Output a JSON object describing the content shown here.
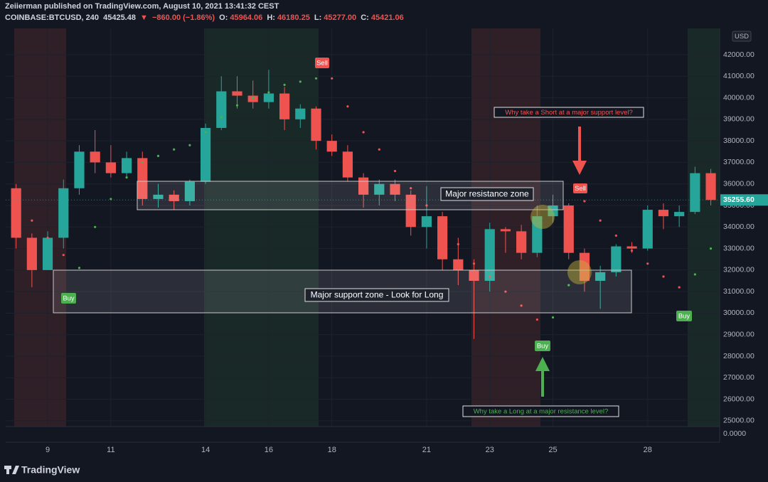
{
  "header": {
    "publisher": "Zeiierman published on TradingView.com, August 10, 2021 13:41:32 CEST",
    "symbol": "COINBASE:BTCUSD, 240",
    "price": "45425.48",
    "arrow": "▼",
    "change": "−860.00 (−1.86%)",
    "o_label": "O:",
    "o": "45964.06",
    "h_label": "H:",
    "h": "46180.25",
    "l_label": "L:",
    "l": "45277.00",
    "c_label": "C:",
    "c": "45421.06"
  },
  "currency": "USD",
  "footer": {
    "brand": "TradingView"
  },
  "chart_data": {
    "type": "candlestick",
    "x": [
      8,
      8.5,
      9,
      9.5,
      10,
      10.5,
      11,
      11.5,
      12,
      12.5,
      13,
      13.5,
      14,
      14.5,
      15,
      15.5,
      16,
      16.5,
      17,
      17.5,
      18,
      18.5,
      19,
      19.5,
      20,
      20.5,
      21,
      21.5,
      22,
      22.5,
      23,
      23.5,
      24,
      24.5,
      25,
      25.5,
      26,
      26.5,
      27,
      27.5,
      28,
      28.5,
      29,
      29.5,
      30
    ],
    "open": [
      35800,
      33500,
      32000,
      33500,
      35800,
      37500,
      37000,
      36500,
      37200,
      35300,
      35500,
      35200,
      36100,
      38600,
      40300,
      40100,
      39800,
      40200,
      39000,
      39500,
      38000,
      37500,
      36300,
      35500,
      36000,
      35500,
      34000,
      34500,
      32500,
      32000,
      31500,
      33900,
      33800,
      32800,
      34500,
      35000,
      32800,
      31500,
      31900,
      33100,
      33000,
      34800,
      34500,
      34700,
      36500
    ],
    "high": [
      36000,
      33700,
      33800,
      36200,
      37800,
      38500,
      37800,
      37500,
      37500,
      36000,
      35700,
      36200,
      38800,
      41000,
      41000,
      40800,
      41300,
      40500,
      39700,
      39600,
      38300,
      37800,
      36500,
      36200,
      36200,
      35700,
      35900,
      34700,
      33500,
      32500,
      34200,
      34000,
      34100,
      35000,
      35500,
      35100,
      33000,
      32200,
      33200,
      33300,
      35000,
      35100,
      35000,
      36800,
      36700
    ],
    "low": [
      33000,
      31200,
      32000,
      33000,
      35500,
      36500,
      36300,
      36300,
      35000,
      34900,
      34800,
      35000,
      36000,
      38500,
      39500,
      39500,
      39500,
      38500,
      38600,
      37600,
      37300,
      36100,
      34900,
      35000,
      35200,
      33600,
      33000,
      32000,
      31300,
      28800,
      31000,
      32800,
      32500,
      32600,
      34200,
      32500,
      31000,
      30200,
      31700,
      32800,
      32900,
      33900,
      34000,
      34600,
      35000
    ],
    "close": [
      33500,
      32000,
      33500,
      35800,
      37500,
      37000,
      36500,
      37200,
      35300,
      35500,
      35200,
      36100,
      38600,
      40300,
      40100,
      39800,
      40200,
      39000,
      39500,
      38000,
      37500,
      36300,
      35500,
      36000,
      35500,
      34000,
      34500,
      32500,
      32000,
      31500,
      33900,
      33800,
      32800,
      34500,
      35000,
      32800,
      31500,
      31900,
      33100,
      33000,
      34800,
      34500,
      34700,
      36500,
      35255.6
    ],
    "up_color": "#26a69a",
    "down_color": "#ef5350",
    "sar": [
      {
        "color": "#ef5350",
        "values": [
          35000,
          34300,
          33500,
          32700,
          null,
          null,
          null,
          null,
          null,
          null,
          null,
          null,
          null,
          null,
          null,
          null,
          null,
          null,
          null,
          null,
          40900,
          39600,
          38400,
          37600,
          36600,
          35800,
          35000,
          34000,
          33200,
          32300,
          31700,
          31000,
          30350,
          29700,
          null,
          null,
          35200,
          34300,
          33600,
          32900,
          32300,
          31700,
          31200,
          null,
          null
        ]
      },
      {
        "color": "#4caf50",
        "values": [
          null,
          null,
          null,
          null,
          32100,
          34000,
          35300,
          36300,
          37000,
          37300,
          37600,
          37800,
          38400,
          39100,
          39650,
          40000,
          40250,
          40600,
          40750,
          40900,
          null,
          null,
          null,
          null,
          null,
          null,
          null,
          null,
          null,
          null,
          null,
          null,
          null,
          null,
          29800,
          31300,
          null,
          null,
          null,
          null,
          null,
          null,
          null,
          31800,
          33000
        ]
      }
    ],
    "last_price": {
      "value": 35255.6,
      "label": "35255.60"
    },
    "xlim": [
      7.67,
      30.28
    ],
    "xticks": [
      9,
      11,
      14,
      16,
      18,
      21,
      23,
      25,
      28
    ],
    "ylim": [
      24733,
      43221
    ],
    "yticks": [
      {
        "value": 25000,
        "label": "25000.00"
      },
      {
        "value": 26000,
        "label": "26000.00"
      },
      {
        "value": 27000,
        "label": "27000.00"
      },
      {
        "value": 28000,
        "label": "28000.00"
      },
      {
        "value": 29000,
        "label": "29000.00"
      },
      {
        "value": 30000,
        "label": "30000.00"
      },
      {
        "value": 31000,
        "label": "31000.00"
      },
      {
        "value": 32000,
        "label": "32000.00"
      },
      {
        "value": 33000,
        "label": "33000.00"
      },
      {
        "value": 34000,
        "label": "34000.00"
      },
      {
        "value": 35000,
        "label": "35000.00"
      },
      {
        "value": 36000,
        "label": "36000.00"
      },
      {
        "value": 37000,
        "label": "37000.00"
      },
      {
        "value": 38000,
        "label": "38000.00"
      },
      {
        "value": 39000,
        "label": "39000.00"
      },
      {
        "value": 40000,
        "label": "40000.00"
      },
      {
        "value": 41000,
        "label": "41000.00"
      },
      {
        "value": 42000,
        "label": "42000.00"
      }
    ],
    "pane2_yticks": [
      {
        "value": 0,
        "label": "0.0000"
      }
    ],
    "grid": true,
    "annotations": {
      "resistance": "Major resistance zone",
      "support": "Major support zone - Look for Long",
      "short_question": "Why take a Short at a major support level?",
      "long_question": "Why take a Long at a major resistance level?",
      "sell_1": "Sell",
      "sell_2": "Sell",
      "buy_1": "Buy",
      "buy_2": "Buy",
      "buy_3": "Buy"
    }
  }
}
